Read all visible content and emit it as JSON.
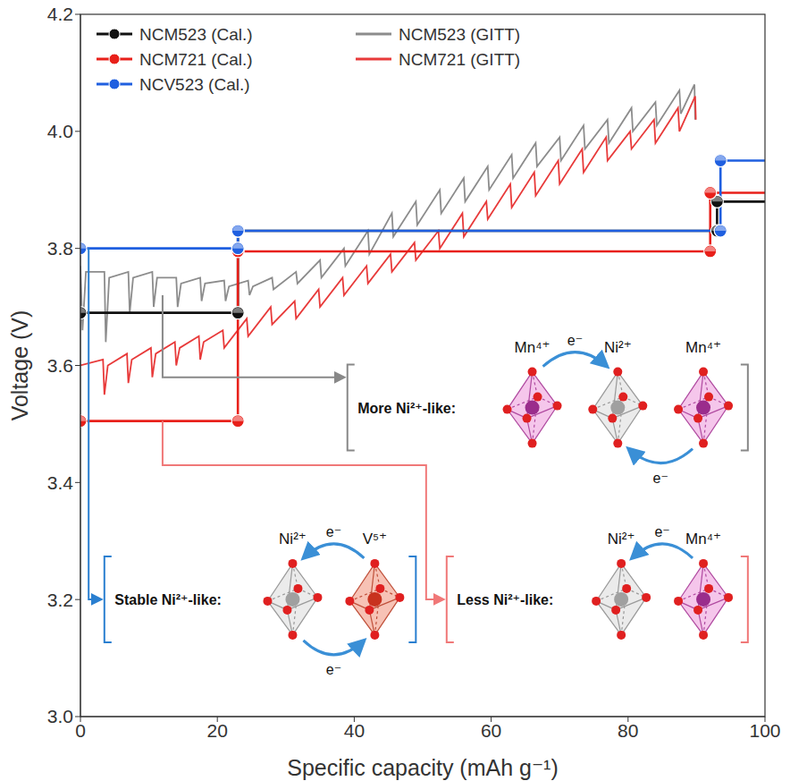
{
  "chart_data": {
    "type": "line",
    "xlabel": "Specific capacity (mAh g⁻¹)",
    "ylabel": "Voltage (V)",
    "xlim": [
      0,
      100
    ],
    "ylim": [
      3.0,
      4.2
    ],
    "xticks": [
      0,
      20,
      40,
      60,
      80,
      100
    ],
    "yticks": [
      {
        "value": 3.0,
        "label": "3.0"
      },
      3.2,
      3.4,
      3.6,
      3.8,
      {
        "value": 4.0,
        "label": "4.0"
      },
      4.2
    ],
    "grid": false,
    "legend": "upper left",
    "series": [
      {
        "name": "NCM523 (Cal.)",
        "color": "#111111",
        "marker": "circle",
        "line_style": "solid",
        "x": [
          0,
          23,
          23,
          93,
          93,
          100
        ],
        "values": [
          3.69,
          3.69,
          3.83,
          3.83,
          3.88,
          3.88
        ]
      },
      {
        "name": "NCM721 (Cal.)",
        "color": "#e8201a",
        "marker": "circle",
        "line_style": "solid",
        "x": [
          0,
          23,
          23,
          92,
          92,
          100
        ],
        "values": [
          3.505,
          3.505,
          3.795,
          3.795,
          3.895,
          3.895
        ]
      },
      {
        "name": "NCV523 (Cal.)",
        "color": "#1f5fe0",
        "marker": "circle",
        "line_style": "solid",
        "x": [
          0,
          23,
          23,
          93.5,
          93.5,
          100
        ],
        "values": [
          3.8,
          3.8,
          3.83,
          3.83,
          3.95,
          3.95
        ]
      },
      {
        "name": "NCM523 (GITT)",
        "color": "#8c8c8c",
        "marker": "none",
        "line_style": "solid",
        "x": [
          0,
          0.3,
          0.8,
          3.5,
          3.7,
          4.2,
          7,
          7.2,
          7.7,
          10.5,
          10.7,
          11.2,
          14,
          14.2,
          14.7,
          17.5,
          17.7,
          18.2,
          21,
          21.2,
          21.7,
          24.5,
          24.7,
          25.2,
          28,
          28.2,
          31.5,
          31.7,
          35,
          35.2,
          38.5,
          38.7,
          42,
          42.2,
          45.5,
          45.7,
          49,
          49.2,
          52.5,
          52.7,
          56,
          56.2,
          59.5,
          59.7,
          63,
          63.2,
          66.5,
          66.7,
          70,
          70.2,
          73.5,
          73.7,
          77,
          77.2,
          80.5,
          80.7,
          84,
          84.2,
          87.5,
          87.7,
          89.7,
          89.8
        ],
        "values": [
          3.77,
          3.66,
          3.76,
          3.76,
          3.64,
          3.75,
          3.76,
          3.69,
          3.75,
          3.76,
          3.7,
          3.75,
          3.75,
          3.7,
          3.74,
          3.75,
          3.71,
          3.74,
          3.745,
          3.71,
          3.735,
          3.745,
          3.72,
          3.735,
          3.75,
          3.73,
          3.76,
          3.74,
          3.78,
          3.75,
          3.8,
          3.77,
          3.83,
          3.79,
          3.86,
          3.82,
          3.88,
          3.84,
          3.9,
          3.86,
          3.92,
          3.88,
          3.94,
          3.9,
          3.96,
          3.92,
          3.98,
          3.94,
          3.99,
          3.95,
          4.01,
          3.97,
          4.02,
          3.98,
          4.04,
          4.0,
          4.05,
          4.01,
          4.07,
          4.03,
          4.08,
          4.02
        ]
      },
      {
        "name": "NCM721 (GITT)",
        "color": "#e83a3a",
        "marker": "none",
        "line_style": "solid",
        "x": [
          0,
          3.3,
          3.5,
          4,
          6.8,
          7,
          7.5,
          10.3,
          10.5,
          11,
          13.8,
          14,
          14.5,
          17.3,
          17.5,
          18,
          20.8,
          21,
          24.3,
          24.5,
          27.8,
          28,
          31.3,
          31.5,
          34.8,
          35,
          38.3,
          38.5,
          41.8,
          42,
          45.3,
          45.5,
          48.8,
          49,
          52.3,
          52.5,
          55.8,
          56,
          59.3,
          59.5,
          62.8,
          63,
          66.3,
          66.5,
          69.8,
          70,
          73.3,
          73.5,
          76.8,
          77,
          80.3,
          80.5,
          83.8,
          84,
          87.3,
          87.5,
          89.8,
          89.9
        ],
        "values": [
          3.6,
          3.61,
          3.55,
          3.6,
          3.62,
          3.57,
          3.61,
          3.63,
          3.58,
          3.62,
          3.64,
          3.6,
          3.63,
          3.65,
          3.61,
          3.64,
          3.66,
          3.63,
          3.68,
          3.65,
          3.7,
          3.67,
          3.71,
          3.68,
          3.73,
          3.7,
          3.75,
          3.72,
          3.77,
          3.74,
          3.79,
          3.76,
          3.81,
          3.78,
          3.83,
          3.8,
          3.86,
          3.82,
          3.88,
          3.85,
          3.91,
          3.87,
          3.93,
          3.89,
          3.95,
          3.91,
          3.97,
          3.93,
          3.99,
          3.95,
          4.0,
          3.97,
          4.02,
          3.98,
          4.04,
          4.0,
          4.06,
          4.02
        ]
      }
    ],
    "annotations": [
      {
        "text": "More Ni²⁺-like:",
        "color": "#888888",
        "ions": [
          "Mn⁴⁺",
          "Ni²⁺",
          "Mn⁴⁺"
        ],
        "electron": "e⁻"
      },
      {
        "text": "Stable Ni²⁺-like:",
        "color": "#2a7fd0",
        "ions": [
          "Ni²⁺",
          "V⁵⁺"
        ],
        "electron": "e⁻"
      },
      {
        "text": "Less Ni²⁺-like:",
        "color": "#f07878",
        "ions": [
          "Ni²⁺",
          "Mn⁴⁺"
        ],
        "electron": "e⁻"
      }
    ]
  }
}
